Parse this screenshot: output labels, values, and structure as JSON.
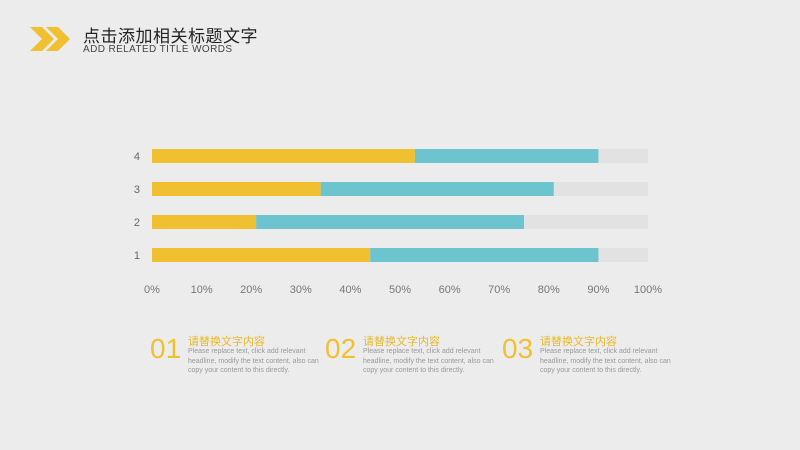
{
  "header": {
    "title": "点击添加相关标题文字",
    "subtitle": "ADD RELATED TITLE WORDS",
    "accent": "#f0c030"
  },
  "chart_data": {
    "type": "bar",
    "orientation": "horizontal",
    "stacked": true,
    "categories": [
      "1",
      "2",
      "3",
      "4"
    ],
    "series": [
      {
        "color": "#f0c030",
        "values": [
          44,
          21,
          34,
          53
        ]
      },
      {
        "color": "#6cc4ce",
        "values": [
          46,
          54,
          47,
          37
        ]
      }
    ],
    "track_color": "#e2e2e2",
    "xlim": [
      0,
      100
    ],
    "xticks": [
      "0%",
      "10%",
      "20%",
      "30%",
      "40%",
      "50%",
      "60%",
      "70%",
      "80%",
      "90%",
      "100%"
    ],
    "grid": false,
    "legend": "none"
  },
  "items": [
    {
      "num": "01",
      "heading": "请替换文字内容",
      "body": "Please replace text, click add relevant headline, modify the text content, also can copy your content to this directly."
    },
    {
      "num": "02",
      "heading": "请替换文字内容",
      "body": "Please replace text, click add relevant headline, modify the text content, also can copy your content to this directly."
    },
    {
      "num": "03",
      "heading": "请替换文字内容",
      "body": "Please replace text, click add relevant headline, modify the text content, also can copy your content to this directly."
    }
  ]
}
